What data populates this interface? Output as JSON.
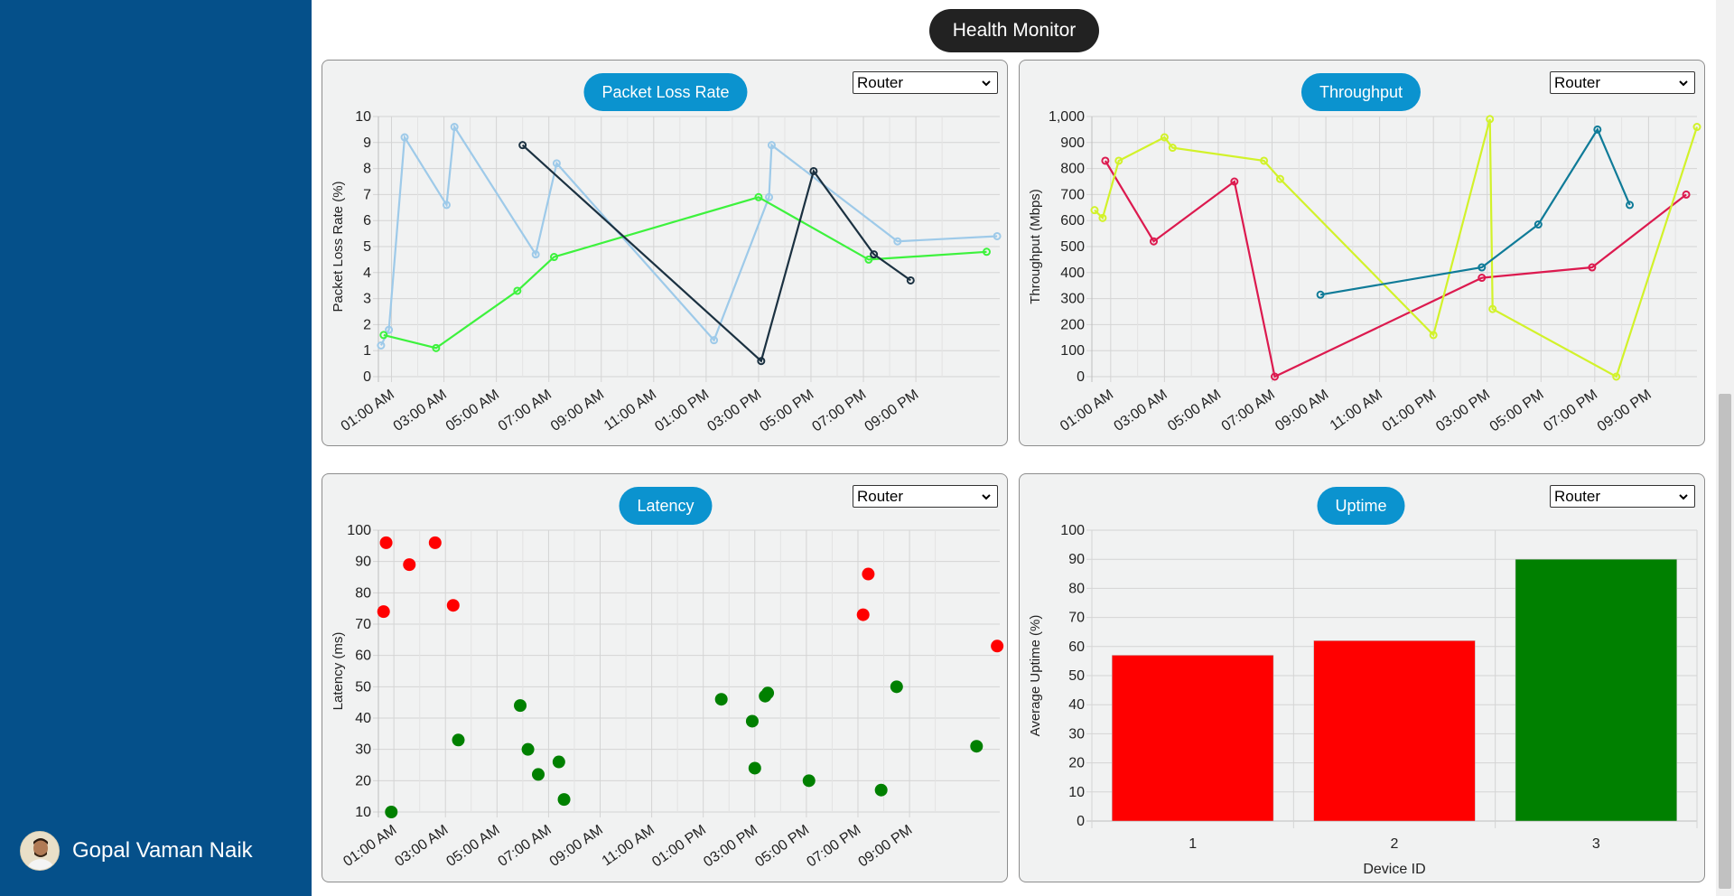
{
  "app": {
    "page_title": "Health Monitor"
  },
  "user": {
    "name": "Gopal Vaman Naik"
  },
  "colors": {
    "sidebar": "#05508a",
    "title_pill": "#0b93cf"
  },
  "panels": [
    {
      "id": "packet-loss",
      "title": "Packet Loss Rate",
      "selected": "Router",
      "chart_data": {
        "type": "line",
        "ylabel": "Packet Loss Rate (%)",
        "ylim": [
          0,
          10
        ],
        "yticks": [
          "0",
          "1",
          "2",
          "3",
          "4",
          "5",
          "6",
          "7",
          "8",
          "9",
          "10"
        ],
        "xticks": [
          "01:00 AM",
          "03:00 AM",
          "05:00 AM",
          "07:00 AM",
          "09:00 AM",
          "11:00 AM",
          "01:00 PM",
          "03:00 PM",
          "05:00 PM",
          "07:00 PM",
          "09:00 PM"
        ],
        "xlim": [
          0.5,
          24.2
        ],
        "series": [
          {
            "color": "#9ecae9",
            "points": [
              [
                0.6,
                1.2
              ],
              [
                0.9,
                1.8
              ],
              [
                1.5,
                9.2
              ],
              [
                3.1,
                6.6
              ],
              [
                3.4,
                9.6
              ],
              [
                6.5,
                4.7
              ],
              [
                7.3,
                8.2
              ],
              [
                13.3,
                1.4
              ],
              [
                15.4,
                6.9
              ],
              [
                15.5,
                8.9
              ],
              [
                20.3,
                5.2
              ],
              [
                24.1,
                5.4
              ]
            ]
          },
          {
            "color": "#3df23d",
            "points": [
              [
                0.7,
                1.6
              ],
              [
                2.7,
                1.1
              ],
              [
                5.8,
                3.3
              ],
              [
                7.2,
                4.6
              ],
              [
                15.0,
                6.9
              ],
              [
                19.2,
                4.5
              ],
              [
                23.7,
                4.8
              ]
            ]
          },
          {
            "color": "#1b3141",
            "points": [
              [
                6.0,
                8.9
              ],
              [
                15.1,
                0.6
              ],
              [
                17.1,
                7.9
              ],
              [
                19.4,
                4.7
              ],
              [
                20.8,
                3.7
              ]
            ]
          }
        ]
      }
    },
    {
      "id": "throughput",
      "title": "Throughput",
      "selected": "Router",
      "chart_data": {
        "type": "line",
        "ylabel": "Throughput (Mbps)",
        "ylim": [
          0,
          1000
        ],
        "yticks": [
          "0",
          "100",
          "200",
          "300",
          "400",
          "500",
          "600",
          "700",
          "800",
          "900",
          "1,000"
        ],
        "xticks": [
          "01:00 AM",
          "03:00 AM",
          "05:00 AM",
          "07:00 AM",
          "09:00 AM",
          "11:00 AM",
          "01:00 PM",
          "03:00 PM",
          "05:00 PM",
          "07:00 PM",
          "09:00 PM"
        ],
        "xlim": [
          0.3,
          22.8
        ],
        "series": [
          {
            "color": "#dc1a4f",
            "points": [
              [
                0.8,
                830
              ],
              [
                2.6,
                520
              ],
              [
                5.6,
                750
              ],
              [
                7.1,
                0
              ],
              [
                14.8,
                380
              ],
              [
                18.9,
                420
              ],
              [
                22.4,
                700
              ]
            ]
          },
          {
            "color": "#d2f22a",
            "points": [
              [
                0.4,
                640
              ],
              [
                0.7,
                610
              ],
              [
                1.3,
                830
              ],
              [
                3.0,
                920
              ],
              [
                3.3,
                880
              ],
              [
                6.7,
                830
              ],
              [
                7.3,
                760
              ],
              [
                13.0,
                160
              ],
              [
                15.1,
                990
              ],
              [
                15.2,
                260
              ],
              [
                19.8,
                0
              ],
              [
                22.8,
                960
              ]
            ]
          },
          {
            "color": "#0f7b98",
            "points": [
              [
                8.8,
                315
              ],
              [
                14.8,
                420
              ],
              [
                16.9,
                585
              ],
              [
                19.1,
                950
              ],
              [
                20.3,
                660
              ]
            ]
          }
        ]
      }
    },
    {
      "id": "latency",
      "title": "Latency",
      "selected": "Router",
      "chart_data": {
        "type": "scatter",
        "ylabel": "Latency (ms)",
        "ylim": [
          10,
          100
        ],
        "yticks": [
          "10",
          "20",
          "30",
          "40",
          "50",
          "60",
          "70",
          "80",
          "90",
          "100"
        ],
        "xticks": [
          "01:00 AM",
          "03:00 AM",
          "05:00 AM",
          "07:00 AM",
          "09:00 AM",
          "11:00 AM",
          "01:00 PM",
          "03:00 PM",
          "05:00 PM",
          "07:00 PM",
          "09:00 PM"
        ],
        "xlim": [
          0.4,
          24.5
        ],
        "series": [
          {
            "color": "#ff0000",
            "points": [
              [
                0.6,
                74
              ],
              [
                0.7,
                96
              ],
              [
                1.6,
                89
              ],
              [
                2.6,
                96
              ],
              [
                3.3,
                76
              ],
              [
                19.2,
                73
              ],
              [
                19.4,
                86
              ],
              [
                24.4,
                63
              ]
            ]
          },
          {
            "color": "#008000",
            "points": [
              [
                0.9,
                10
              ],
              [
                3.5,
                33
              ],
              [
                5.9,
                44
              ],
              [
                6.2,
                30
              ],
              [
                6.6,
                22
              ],
              [
                7.4,
                26
              ],
              [
                7.6,
                14
              ],
              [
                13.7,
                46
              ],
              [
                14.9,
                39
              ],
              [
                15.0,
                24
              ],
              [
                15.4,
                47
              ],
              [
                15.5,
                48
              ],
              [
                17.1,
                20
              ],
              [
                19.9,
                17
              ],
              [
                20.5,
                50
              ],
              [
                23.6,
                31
              ]
            ]
          }
        ]
      }
    },
    {
      "id": "uptime",
      "title": "Uptime",
      "selected": "Router",
      "chart_data": {
        "type": "bar",
        "xlabel": "Device ID",
        "ylabel": "Average Uptime (%)",
        "ylim": [
          0,
          100
        ],
        "yticks": [
          "0",
          "10",
          "20",
          "30",
          "40",
          "50",
          "60",
          "70",
          "80",
          "90",
          "100"
        ],
        "categories": [
          "1",
          "2",
          "3"
        ],
        "values": [
          57,
          62,
          90
        ],
        "bar_colors": [
          "#ff0000",
          "#ff0000",
          "#008000"
        ]
      }
    }
  ]
}
